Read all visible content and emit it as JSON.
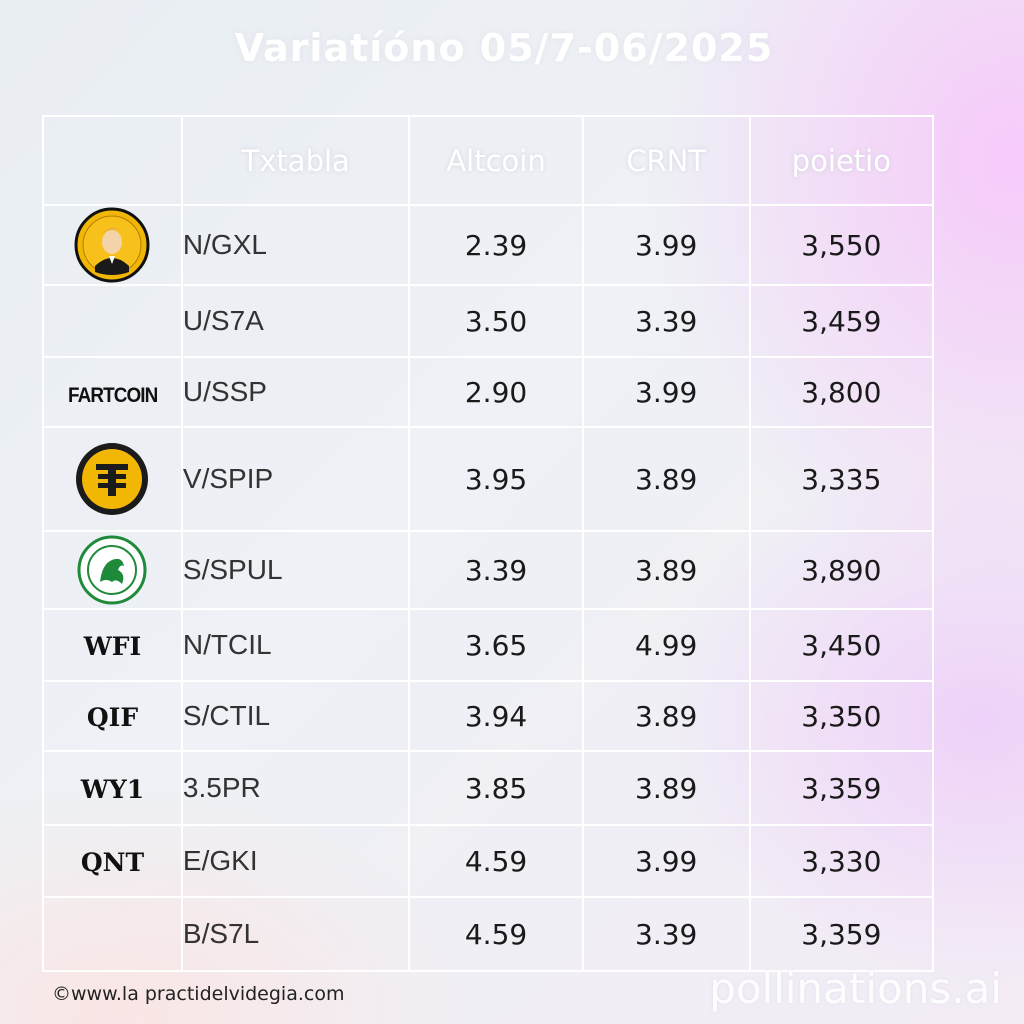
{
  "title": "Variatíóno 05/7-06/2025",
  "headers": [
    "",
    "Txtabla",
    "Altcoin",
    "CRNT",
    "poietio"
  ],
  "rows": [
    {
      "logo": "gold-coin-portrait-icon",
      "logo_text": "",
      "pair": "N/GXL",
      "altcoin": "2.39",
      "crnt": "3.99",
      "poietio": "3,550"
    },
    {
      "logo": "",
      "logo_text": "",
      "pair": "U/S7A",
      "altcoin": "3.50",
      "crnt": "3.39",
      "poietio": "3,459"
    },
    {
      "logo": "wordmark",
      "logo_text": "FARTCOIN",
      "pair": "U/SSP",
      "altcoin": "2.90",
      "crnt": "3.99",
      "poietio": "3,800"
    },
    {
      "logo": "yellow-t-coin-icon",
      "logo_text": "",
      "pair": "V/SPIP",
      "altcoin": "3.95",
      "crnt": "3.89",
      "poietio": "3,335"
    },
    {
      "logo": "green-crest-icon",
      "logo_text": "",
      "pair": "S/SPUL",
      "altcoin": "3.39",
      "crnt": "3.89",
      "poietio": "3,890"
    },
    {
      "logo": "wordmark",
      "logo_text": "WFI",
      "pair": "N/TCIL",
      "altcoin": "3.65",
      "crnt": "4.99",
      "poietio": "3,450"
    },
    {
      "logo": "wordmark",
      "logo_text": "QIF",
      "pair": "S/CTIL",
      "altcoin": "3.94",
      "crnt": "3.89",
      "poietio": "3,350"
    },
    {
      "logo": "wordmark",
      "logo_text": "WY1",
      "pair": "3.5PR",
      "altcoin": "3.85",
      "crnt": "3.89",
      "poietio": "3,359"
    },
    {
      "logo": "wordmark",
      "logo_text": "QNT",
      "pair": "E/GKI",
      "altcoin": "4.59",
      "crnt": "3.99",
      "poietio": "3,330"
    },
    {
      "logo": "",
      "logo_text": "",
      "pair": "B/S7L",
      "altcoin": "4.59",
      "crnt": "3.39",
      "poietio": "3,359"
    }
  ],
  "footer": {
    "source": "©www.la practidelvidegia.com",
    "watermark": "pollinations.ai"
  }
}
